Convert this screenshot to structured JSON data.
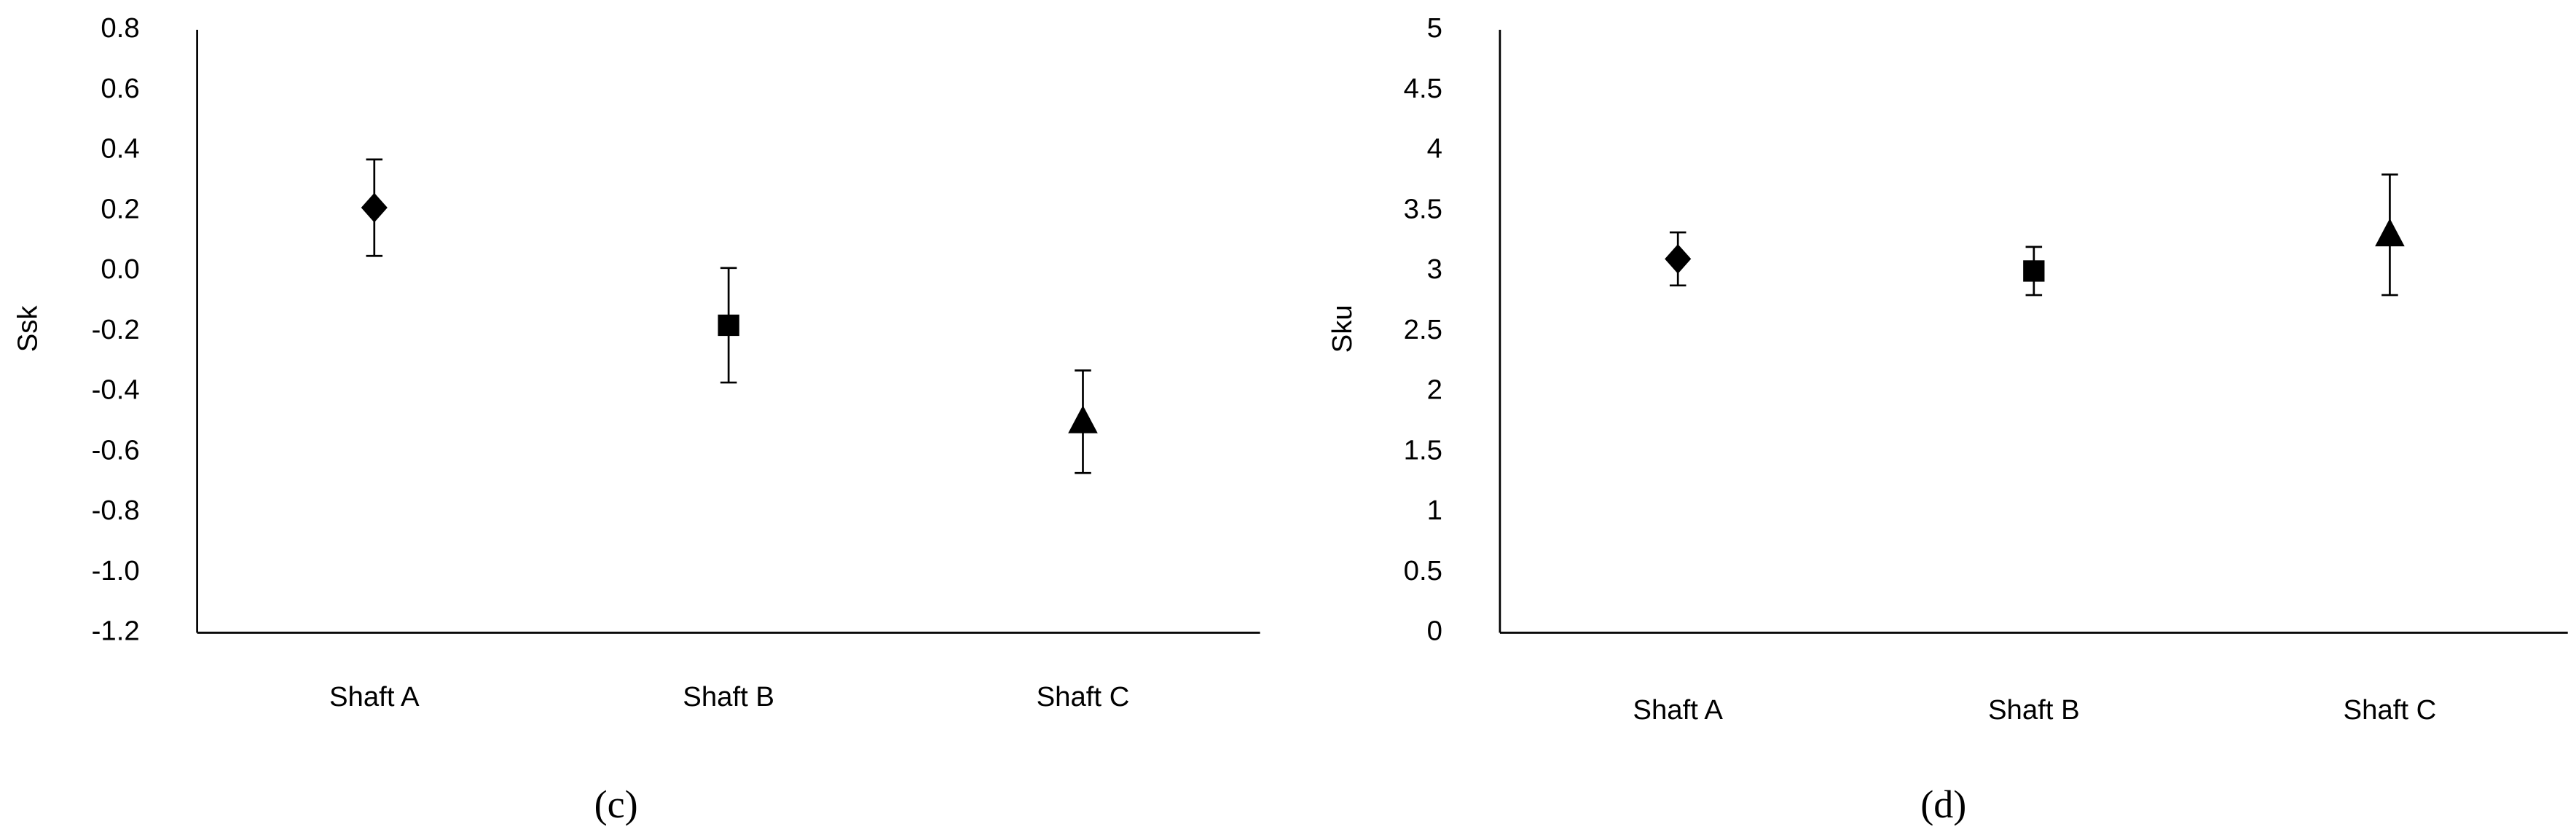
{
  "chart_data": [
    {
      "type": "errorpoint",
      "y_label": "Ssk",
      "caption": "(c)",
      "categories": [
        "Shaft A",
        "Shaft B",
        "Shaft C"
      ],
      "values": [
        0.21,
        -0.18,
        -0.5
      ],
      "errors": [
        0.16,
        0.19,
        0.17
      ],
      "markers": [
        "diamond",
        "square",
        "triangle"
      ],
      "color": "#000000",
      "ylim": [
        -1.2,
        0.8
      ],
      "yticks": [
        -1.2,
        {
          "value": -1,
          "label": "-1.0"
        },
        -0.8,
        -0.6,
        -0.4,
        -0.2,
        {
          "value": 0,
          "label": "0.0"
        },
        0.2,
        0.4,
        0.6,
        0.8
      ]
    },
    {
      "type": "errorpoint",
      "y_label": "Sku",
      "caption": "(d)",
      "categories": [
        "Shaft A",
        "Shaft B",
        "Shaft C"
      ],
      "values": [
        3.1,
        3.0,
        3.3
      ],
      "errors": [
        0.22,
        0.2,
        0.5
      ],
      "markers": [
        "diamond",
        "square",
        "triangle"
      ],
      "color": "#000000",
      "ylim": [
        0,
        5
      ],
      "yticks": [
        0,
        0.5,
        1,
        1.5,
        2,
        2.5,
        3,
        3.5,
        4,
        4.5,
        5
      ]
    }
  ]
}
